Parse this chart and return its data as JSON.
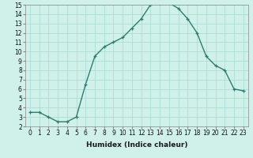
{
  "x": [
    0,
    1,
    2,
    3,
    4,
    5,
    6,
    7,
    8,
    9,
    10,
    11,
    12,
    13,
    14,
    15,
    16,
    17,
    18,
    19,
    20,
    21,
    22,
    23
  ],
  "y": [
    3.5,
    3.5,
    3.0,
    2.5,
    2.5,
    3.0,
    6.5,
    9.5,
    10.5,
    11.0,
    11.5,
    12.5,
    13.5,
    15.0,
    15.2,
    15.2,
    14.6,
    13.5,
    12.0,
    9.5,
    8.5,
    8.0,
    6.0,
    5.8
  ],
  "xlabel": "Humidex (Indice chaleur)",
  "ylim": [
    2,
    15
  ],
  "xlim": [
    -0.5,
    23.5
  ],
  "line_color": "#2e7d6e",
  "marker": "+",
  "bg_color": "#d0f0ea",
  "grid_color": "#aaddd5",
  "yticks": [
    2,
    3,
    4,
    5,
    6,
    7,
    8,
    9,
    10,
    11,
    12,
    13,
    14,
    15
  ],
  "xticks": [
    0,
    1,
    2,
    3,
    4,
    5,
    6,
    7,
    8,
    9,
    10,
    11,
    12,
    13,
    14,
    15,
    16,
    17,
    18,
    19,
    20,
    21,
    22,
    23
  ],
  "xlabel_fontsize": 6.5,
  "tick_fontsize": 5.5
}
